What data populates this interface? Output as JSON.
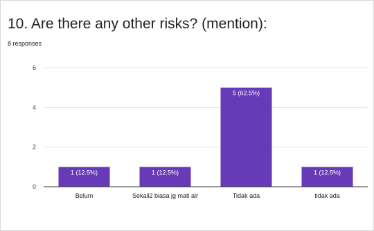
{
  "question": {
    "title": "10. Are there any other risks? (mention):",
    "responses": "8 responses"
  },
  "colors": {
    "bar": "#673ab7",
    "grid": "#e6e6e6",
    "axis": "#333333"
  },
  "chart_data": {
    "type": "bar",
    "categories": [
      "Belum",
      "Sekali2 biasa jg mati air",
      "Tidak ada",
      "tidak ada"
    ],
    "values": [
      1,
      1,
      5,
      1
    ],
    "data_labels": [
      "1 (12.5%)",
      "1 (12.5%)",
      "5 (62.5%)",
      "1 (12.5%)"
    ],
    "yticks": [
      0,
      2,
      4,
      6
    ],
    "ylim": [
      0,
      6
    ],
    "grid": true,
    "legend": "none"
  }
}
